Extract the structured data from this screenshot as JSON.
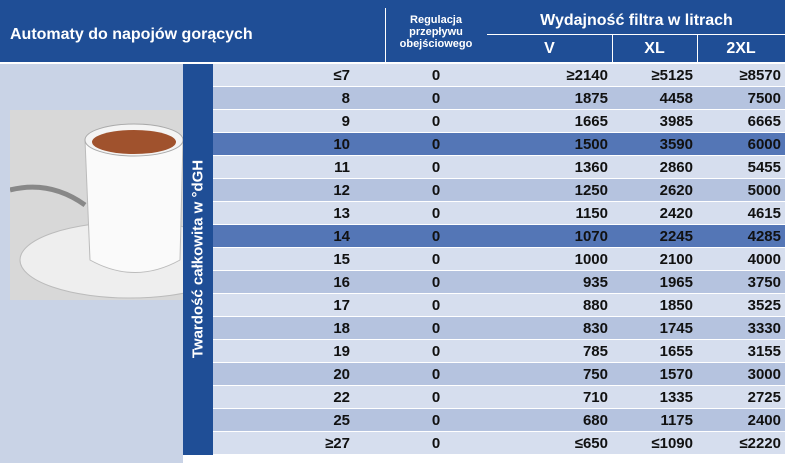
{
  "header": {
    "title": "Automaty do napojów gorących",
    "regulation": "Regulacja przepływu obejściowego",
    "capacity": "Wydajność filtra w litrach",
    "columns": [
      "V",
      "XL",
      "2XL"
    ]
  },
  "side_label": "Twardość całkowita w °dGH",
  "table": {
    "highlight": [
      3,
      7
    ],
    "rows": [
      [
        "≤7",
        "0",
        "≥2140",
        "≥5125",
        "≥8570"
      ],
      [
        "8",
        "0",
        "1875",
        "4458",
        "7500"
      ],
      [
        "9",
        "0",
        "1665",
        "3985",
        "6665"
      ],
      [
        "10",
        "0",
        "1500",
        "3590",
        "6000"
      ],
      [
        "11",
        "0",
        "1360",
        "2860",
        "5455"
      ],
      [
        "12",
        "0",
        "1250",
        "2620",
        "5000"
      ],
      [
        "13",
        "0",
        "1150",
        "2420",
        "4615"
      ],
      [
        "14",
        "0",
        "1070",
        "2245",
        "4285"
      ],
      [
        "15",
        "0",
        "1000",
        "2100",
        "4000"
      ],
      [
        "16",
        "0",
        "935",
        "1965",
        "3750"
      ],
      [
        "17",
        "0",
        "880",
        "1850",
        "3525"
      ],
      [
        "18",
        "0",
        "830",
        "1745",
        "3330"
      ],
      [
        "19",
        "0",
        "785",
        "1655",
        "3155"
      ],
      [
        "20",
        "0",
        "750",
        "1570",
        "3000"
      ],
      [
        "22",
        "0",
        "710",
        "1335",
        "2725"
      ],
      [
        "25",
        "0",
        "680",
        "1175",
        "2400"
      ],
      [
        "≥27",
        "0",
        "≤650",
        "≤1090",
        "≤2220"
      ]
    ]
  }
}
